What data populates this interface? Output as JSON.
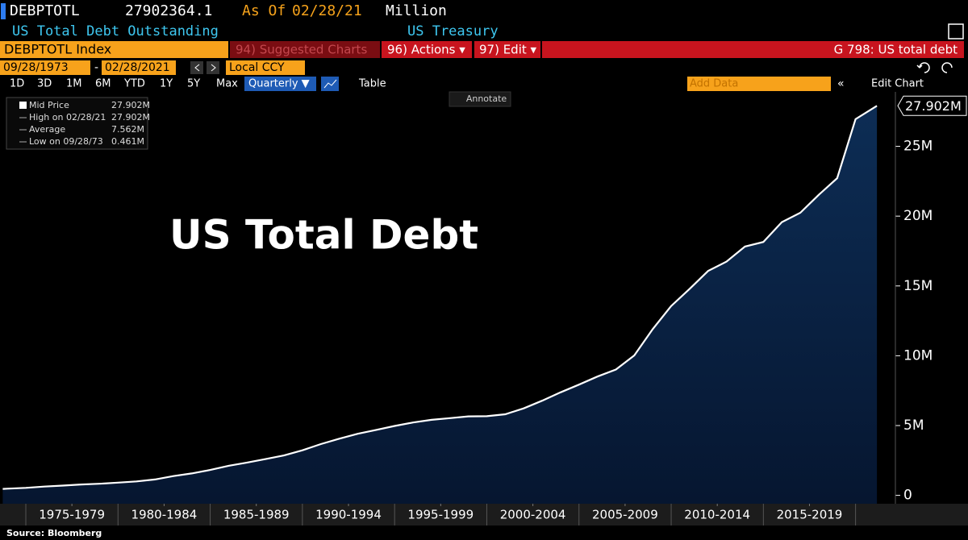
{
  "header": {
    "ticker": "DEBPTOTL",
    "last": "27902364.1",
    "as_of": "As Of",
    "date": "02/28/21",
    "unit": "Million",
    "name": "US Total Debt Outstanding",
    "source_name": "US Treasury"
  },
  "toolbar": {
    "security": "DEBPTOTL Index",
    "suggested": "94) Suggested Charts",
    "actions": "96) Actions ▾",
    "edit": "97) Edit ▾",
    "chart_id": "G 798: US total debt"
  },
  "date_row": {
    "start": "09/28/1973",
    "sep": "-",
    "end": "02/28/2021",
    "currency": "Local CCY"
  },
  "range_buttons": [
    "1D",
    "3D",
    "1M",
    "6M",
    "YTD",
    "1Y",
    "5Y",
    "Max"
  ],
  "controls": {
    "frequency": "Quarterly ▼",
    "table": "Table",
    "add_data": "Add Data",
    "edit_chart": "Edit Chart",
    "annotate": "Annotate"
  },
  "legend": [
    [
      "Mid Price",
      "27.902M"
    ],
    [
      "High on 02/28/21",
      "27.902M"
    ],
    [
      "Average",
      "7.562M"
    ],
    [
      "Low on 09/28/73",
      "0.461M"
    ]
  ],
  "footer": "Source: Bloomberg",
  "chart_data": {
    "type": "area",
    "annotation": "US Total Debt",
    "last_price_label": "27.902M",
    "x": [
      1973.75,
      1974,
      1975,
      1976,
      1977,
      1978,
      1979,
      1980,
      1981,
      1982,
      1983,
      1984,
      1985,
      1986,
      1987,
      1988,
      1989,
      1990,
      1991,
      1992,
      1993,
      1994,
      1995,
      1996,
      1997,
      1998,
      1999,
      2000,
      2001,
      2002,
      2003,
      2004,
      2005,
      2006,
      2007,
      2008,
      2009,
      2010,
      2011,
      2012,
      2013,
      2014,
      2015,
      2016,
      2017,
      2018,
      2019,
      2020,
      2021.16
    ],
    "series": [
      {
        "name": "Mid Price",
        "color": "#ffffff",
        "fill": "#0a2546",
        "values": [
          0.461,
          0.48,
          0.54,
          0.63,
          0.7,
          0.78,
          0.83,
          0.91,
          1.0,
          1.14,
          1.38,
          1.57,
          1.82,
          2.12,
          2.35,
          2.6,
          2.86,
          3.23,
          3.67,
          4.06,
          4.41,
          4.69,
          4.97,
          5.22,
          5.41,
          5.53,
          5.66,
          5.67,
          5.81,
          6.23,
          6.78,
          7.38,
          7.93,
          8.51,
          9.01,
          10.02,
          11.91,
          13.56,
          14.79,
          16.07,
          16.74,
          17.82,
          18.15,
          19.57,
          20.24,
          21.52,
          22.72,
          26.95,
          27.902
        ]
      }
    ],
    "xlim": [
      1973.6,
      2022.16
    ],
    "xticks": [
      {
        "value": 1977.5,
        "label": "1975-1979"
      },
      {
        "value": 1982.5,
        "label": "1980-1984"
      },
      {
        "value": 1987.5,
        "label": "1985-1989"
      },
      {
        "value": 1992.5,
        "label": "1990-1994"
      },
      {
        "value": 1997.5,
        "label": "1995-1999"
      },
      {
        "value": 2002.5,
        "label": "2000-2004"
      },
      {
        "value": 2007.5,
        "label": "2005-2009"
      },
      {
        "value": 2012.5,
        "label": "2010-2014"
      },
      {
        "value": 2017.5,
        "label": "2015-2019"
      }
    ],
    "ylim": [
      -0.6,
      28.9
    ],
    "yticks": [
      0,
      {
        "value": 5,
        "label": "5M"
      },
      {
        "value": 10,
        "label": "10M"
      },
      {
        "value": 15,
        "label": "15M"
      },
      {
        "value": 20,
        "label": "20M"
      },
      {
        "value": 25,
        "label": "25M"
      }
    ]
  }
}
